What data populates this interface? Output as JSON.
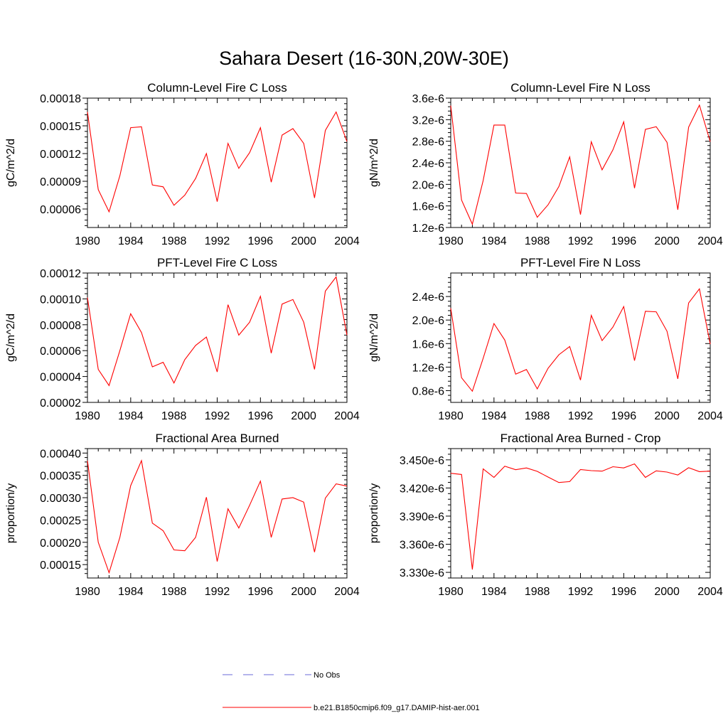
{
  "figure": {
    "title": "Sahara Desert (16-30N,20W-30E)"
  },
  "legend": {
    "items": [
      {
        "label": "No Obs",
        "color": "#6a6ad8",
        "style": "dashed"
      },
      {
        "label": "b.e21.B1850cmip6.f09_g17.DAMIP-hist-aer.001",
        "color": "#ff0000",
        "style": "solid"
      }
    ]
  },
  "chart_data": [
    {
      "type": "line",
      "title": "Column-Level Fire C Loss",
      "ylabel": "gC/m^2/d",
      "xlim": [
        1980,
        2004
      ],
      "ylim": [
        4e-05,
        0.00018
      ],
      "xticks": [
        1980,
        1984,
        1988,
        1992,
        1996,
        2000,
        2004
      ],
      "xtick_labels": [
        "1980",
        "1984",
        "1988",
        "1992",
        "1996",
        "2000",
        "2004"
      ],
      "yticks": [
        6e-05,
        9e-05,
        0.00012,
        0.00015,
        0.00018
      ],
      "ytick_labels": [
        "0.00006",
        "0.00009",
        "0.00012",
        "0.00015",
        "0.00018"
      ],
      "x": [
        1980,
        1981,
        1982,
        1983,
        1984,
        1985,
        1986,
        1987,
        1988,
        1989,
        1990,
        1991,
        1992,
        1993,
        1994,
        1995,
        1996,
        1997,
        1998,
        1999,
        2000,
        2001,
        2002,
        2003,
        2004
      ],
      "series": [
        {
          "color": "#ff0000",
          "values": [
            0.000165,
            8.1e-05,
            5.7e-05,
            9.6e-05,
            0.000148,
            0.000149,
            8.6e-05,
            8.4e-05,
            6.4e-05,
            7.5e-05,
            9.3e-05,
            0.00012,
            6.8e-05,
            0.000131,
            0.000104,
            0.000121,
            0.000148,
            8.9e-05,
            0.00014,
            0.000147,
            0.000131,
            7.2e-05,
            0.000145,
            0.000165,
            0.000133
          ]
        }
      ]
    },
    {
      "type": "line",
      "title": "Column-Level Fire N Loss",
      "ylabel": "gN/m^2/d",
      "xlim": [
        1980,
        2004
      ],
      "ylim": [
        1.2e-06,
        3.6e-06
      ],
      "xticks": [
        1980,
        1984,
        1988,
        1992,
        1996,
        2000,
        2004
      ],
      "xtick_labels": [
        "1980",
        "1984",
        "1988",
        "1992",
        "1996",
        "2000",
        "2004"
      ],
      "yticks": [
        1.2e-06,
        1.6e-06,
        2e-06,
        2.4e-06,
        2.8e-06,
        3.2e-06,
        3.6e-06
      ],
      "ytick_labels": [
        "1.2e-6",
        "1.6e-6",
        "2.0e-6",
        "2.4e-6",
        "2.8e-6",
        "3.2e-6",
        "3.6e-6"
      ],
      "x": [
        1980,
        1981,
        1982,
        1983,
        1984,
        1985,
        1986,
        1987,
        1988,
        1989,
        1990,
        1991,
        1992,
        1993,
        1994,
        1995,
        1996,
        1997,
        1998,
        1999,
        2000,
        2001,
        2002,
        2003,
        2004
      ],
      "series": [
        {
          "color": "#ff0000",
          "values": [
            3.46e-06,
            1.71e-06,
            1.26e-06,
            2.07e-06,
            3.1e-06,
            3.1e-06,
            1.84e-06,
            1.83e-06,
            1.39e-06,
            1.62e-06,
            1.96e-06,
            2.51e-06,
            1.44e-06,
            2.79e-06,
            2.27e-06,
            2.64e-06,
            3.16e-06,
            1.93e-06,
            3.02e-06,
            3.07e-06,
            2.78e-06,
            1.53e-06,
            3.06e-06,
            3.47e-06,
            2.79e-06
          ]
        }
      ]
    },
    {
      "type": "line",
      "title": "PFT-Level Fire C Loss",
      "ylabel": "gC/m^2/d",
      "xlim": [
        1980,
        2004
      ],
      "ylim": [
        2e-05,
        0.00012
      ],
      "xticks": [
        1980,
        1984,
        1988,
        1992,
        1996,
        2000,
        2004
      ],
      "xtick_labels": [
        "1980",
        "1984",
        "1988",
        "1992",
        "1996",
        "2000",
        "2004"
      ],
      "yticks": [
        2e-05,
        4e-05,
        6e-05,
        8e-05,
        0.0001,
        0.00012
      ],
      "ytick_labels": [
        "0.00002",
        "0.00004",
        "0.00006",
        "0.00008",
        "0.00010",
        "0.00012"
      ],
      "x": [
        1980,
        1981,
        1982,
        1983,
        1984,
        1985,
        1986,
        1987,
        1988,
        1989,
        1990,
        1991,
        1992,
        1993,
        1994,
        1995,
        1996,
        1997,
        1998,
        1999,
        2000,
        2001,
        2002,
        2003,
        2004
      ],
      "series": [
        {
          "color": "#ff0000",
          "values": [
            0.000101,
            4.55e-05,
            3.3e-05,
            6e-05,
            8.85e-05,
            7.4e-05,
            4.75e-05,
            5.1e-05,
            3.5e-05,
            5.3e-05,
            6.4e-05,
            7.05e-05,
            4.35e-05,
            9.55e-05,
            7.2e-05,
            8.2e-05,
            0.000102,
            5.8e-05,
            9.6e-05,
            9.95e-05,
            8.2e-05,
            4.55e-05,
            0.000106,
            0.000117,
            7.2e-05
          ]
        }
      ]
    },
    {
      "type": "line",
      "title": "PFT-Level Fire N Loss",
      "ylabel": "gN/m^2/d",
      "xlim": [
        1980,
        2004
      ],
      "ylim": [
        6e-07,
        2.8e-06
      ],
      "xticks": [
        1980,
        1984,
        1988,
        1992,
        1996,
        2000,
        2004
      ],
      "xtick_labels": [
        "1980",
        "1984",
        "1988",
        "1992",
        "1996",
        "2000",
        "2004"
      ],
      "yticks": [
        8e-07,
        1.2e-06,
        1.6e-06,
        2e-06,
        2.4e-06
      ],
      "ytick_labels": [
        "0.8e-6",
        "1.2e-6",
        "1.6e-6",
        "2.0e-6",
        "2.4e-6"
      ],
      "x": [
        1980,
        1981,
        1982,
        1983,
        1984,
        1985,
        1986,
        1987,
        1988,
        1989,
        1990,
        1991,
        1992,
        1993,
        1994,
        1995,
        1996,
        1997,
        1998,
        1999,
        2000,
        2001,
        2002,
        2003,
        2004
      ],
      "series": [
        {
          "color": "#ff0000",
          "values": [
            2.2e-06,
            1.02e-06,
            7.9e-07,
            1.35e-06,
            1.94e-06,
            1.66e-06,
            1.08e-06,
            1.16e-06,
            8.3e-07,
            1.18e-06,
            1.41e-06,
            1.55e-06,
            9.8e-07,
            2.08e-06,
            1.65e-06,
            1.88e-06,
            2.23e-06,
            1.31e-06,
            2.15e-06,
            2.14e-06,
            1.81e-06,
            1e-06,
            2.29e-06,
            2.53e-06,
            1.59e-06
          ]
        }
      ]
    },
    {
      "type": "line",
      "title": "Fractional Area Burned",
      "ylabel": "proportion/y",
      "xlim": [
        1980,
        2004
      ],
      "ylim": [
        0.00012,
        0.00041
      ],
      "xticks": [
        1980,
        1984,
        1988,
        1992,
        1996,
        2000,
        2004
      ],
      "xtick_labels": [
        "1980",
        "1984",
        "1988",
        "1992",
        "1996",
        "2000",
        "2004"
      ],
      "yticks": [
        0.00015,
        0.0002,
        0.00025,
        0.0003,
        0.00035,
        0.0004
      ],
      "ytick_labels": [
        "0.00015",
        "0.00020",
        "0.00025",
        "0.00030",
        "0.00035",
        "0.00040"
      ],
      "x": [
        1980,
        1981,
        1982,
        1983,
        1984,
        1985,
        1986,
        1987,
        1988,
        1989,
        1990,
        1991,
        1992,
        1993,
        1994,
        1995,
        1996,
        1997,
        1998,
        1999,
        2000,
        2001,
        2002,
        2003,
        2004
      ],
      "series": [
        {
          "color": "#ff0000",
          "values": [
            0.000383,
            0.0002,
            0.000132,
            0.000211,
            0.000327,
            0.000383,
            0.000243,
            0.000226,
            0.000183,
            0.000181,
            0.000211,
            0.000301,
            0.000157,
            0.000275,
            0.000232,
            0.000283,
            0.000337,
            0.000211,
            0.000297,
            0.0003,
            0.00029,
            0.000178,
            0.000299,
            0.000331,
            0.000326
          ]
        }
      ]
    },
    {
      "type": "line",
      "title": "Fractional Area Burned - Crop",
      "ylabel": "proportion/y",
      "xlim": [
        1980,
        2004
      ],
      "ylim": [
        3.324e-06,
        3.462e-06
      ],
      "xticks": [
        1980,
        1984,
        1988,
        1992,
        1996,
        2000,
        2004
      ],
      "xtick_labels": [
        "1980",
        "1984",
        "1988",
        "1992",
        "1996",
        "2000",
        "2004"
      ],
      "yticks": [
        3.33e-06,
        3.36e-06,
        3.39e-06,
        3.42e-06,
        3.45e-06
      ],
      "ytick_labels": [
        "3.330e-6",
        "3.360e-6",
        "3.390e-6",
        "3.420e-6",
        "3.450e-6"
      ],
      "x": [
        1980,
        1981,
        1982,
        1983,
        1984,
        1985,
        1986,
        1987,
        1988,
        1989,
        1990,
        1991,
        1992,
        1993,
        1994,
        1995,
        1996,
        1997,
        1998,
        1999,
        2000,
        2001,
        2002,
        2003,
        2004
      ],
      "series": [
        {
          "color": "#ff0000",
          "values": [
            3.4357e-06,
            3.4344e-06,
            3.333e-06,
            3.4403e-06,
            3.4313e-06,
            3.4433e-06,
            3.4395e-06,
            3.4414e-06,
            3.4377e-06,
            3.4317e-06,
            3.4258e-06,
            3.4268e-06,
            3.4397e-06,
            3.4385e-06,
            3.438e-06,
            3.4427e-06,
            3.4414e-06,
            3.4457e-06,
            3.4313e-06,
            3.4383e-06,
            3.437e-06,
            3.4339e-06,
            3.4416e-06,
            3.4374e-06,
            3.438e-06
          ]
        }
      ]
    }
  ]
}
